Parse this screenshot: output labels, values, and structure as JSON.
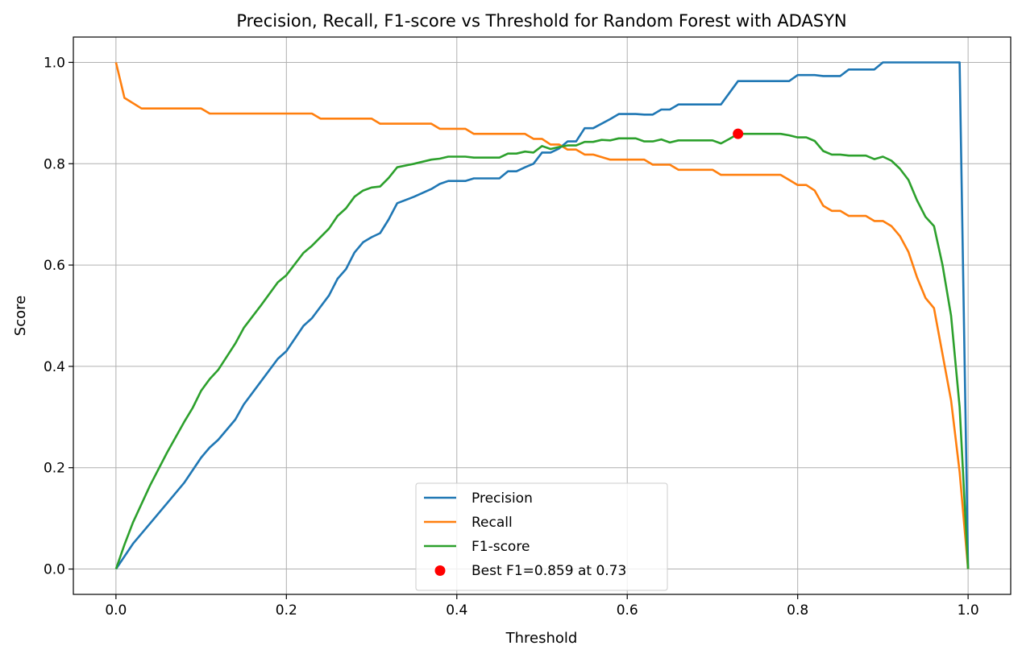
{
  "chart_data": {
    "type": "line",
    "title": "Precision, Recall, F1-score vs Threshold for Random Forest with ADASYN",
    "xlabel": "Threshold",
    "ylabel": "Score",
    "xlim": [
      -0.05,
      1.05
    ],
    "ylim": [
      -0.05,
      1.05
    ],
    "xticks": [
      0.0,
      0.2,
      0.4,
      0.6,
      0.8,
      1.0
    ],
    "xtick_labels": [
      "0.0",
      "0.2",
      "0.4",
      "0.6",
      "0.8",
      "1.0"
    ],
    "yticks": [
      0.0,
      0.2,
      0.4,
      0.6,
      0.8,
      1.0
    ],
    "ytick_labels": [
      "0.0",
      "0.2",
      "0.4",
      "0.6",
      "0.8",
      "1.0"
    ],
    "grid": true,
    "legend_position": "lower-center",
    "series": [
      {
        "name": "Precision",
        "color": "#1f77b4",
        "x": [
          0.0,
          0.02,
          0.04,
          0.06,
          0.08,
          0.09,
          0.1,
          0.11,
          0.12,
          0.14,
          0.15,
          0.17,
          0.19,
          0.2,
          0.22,
          0.23,
          0.25,
          0.26,
          0.27,
          0.28,
          0.29,
          0.3,
          0.31,
          0.32,
          0.33,
          0.35,
          0.37,
          0.38,
          0.39,
          0.4,
          0.41,
          0.42,
          0.43,
          0.45,
          0.46,
          0.47,
          0.48,
          0.49,
          0.5,
          0.51,
          0.52,
          0.53,
          0.54,
          0.55,
          0.56,
          0.58,
          0.59,
          0.6,
          0.61,
          0.62,
          0.63,
          0.64,
          0.65,
          0.66,
          0.67,
          0.7,
          0.71,
          0.72,
          0.73,
          0.75,
          0.77,
          0.78,
          0.79,
          0.8,
          0.82,
          0.83,
          0.85,
          0.86,
          0.88,
          0.89,
          0.9,
          0.92,
          0.95,
          0.97,
          0.99,
          1.0
        ],
        "y": [
          0.0,
          0.05,
          0.09,
          0.13,
          0.17,
          0.195,
          0.22,
          0.24,
          0.255,
          0.295,
          0.325,
          0.37,
          0.415,
          0.43,
          0.48,
          0.495,
          0.54,
          0.573,
          0.592,
          0.625,
          0.645,
          0.655,
          0.663,
          0.69,
          0.722,
          0.735,
          0.75,
          0.76,
          0.766,
          0.766,
          0.766,
          0.771,
          0.771,
          0.771,
          0.785,
          0.785,
          0.793,
          0.8,
          0.822,
          0.822,
          0.83,
          0.844,
          0.844,
          0.87,
          0.87,
          0.888,
          0.898,
          0.898,
          0.898,
          0.897,
          0.897,
          0.907,
          0.907,
          0.917,
          0.917,
          0.917,
          0.917,
          0.94,
          0.963,
          0.963,
          0.963,
          0.963,
          0.963,
          0.975,
          0.975,
          0.973,
          0.973,
          0.986,
          0.986,
          0.986,
          1.0,
          1.0,
          1.0,
          1.0,
          1.0,
          0.0
        ]
      },
      {
        "name": "Recall",
        "color": "#ff7f0e",
        "x": [
          0.0,
          0.01,
          0.03,
          0.05,
          0.1,
          0.11,
          0.2,
          0.23,
          0.24,
          0.3,
          0.31,
          0.37,
          0.38,
          0.41,
          0.42,
          0.48,
          0.49,
          0.5,
          0.51,
          0.52,
          0.53,
          0.54,
          0.55,
          0.56,
          0.58,
          0.59,
          0.62,
          0.63,
          0.64,
          0.65,
          0.66,
          0.69,
          0.7,
          0.71,
          0.78,
          0.79,
          0.8,
          0.81,
          0.82,
          0.83,
          0.84,
          0.85,
          0.86,
          0.88,
          0.89,
          0.9,
          0.91,
          0.92,
          0.93,
          0.94,
          0.95,
          0.96,
          0.97,
          0.98,
          0.99,
          1.0
        ],
        "y": [
          1.0,
          0.93,
          0.909,
          0.909,
          0.909,
          0.899,
          0.899,
          0.899,
          0.889,
          0.889,
          0.879,
          0.879,
          0.869,
          0.869,
          0.859,
          0.859,
          0.849,
          0.849,
          0.838,
          0.838,
          0.828,
          0.828,
          0.818,
          0.818,
          0.808,
          0.808,
          0.808,
          0.798,
          0.798,
          0.798,
          0.788,
          0.788,
          0.788,
          0.778,
          0.778,
          0.768,
          0.758,
          0.758,
          0.747,
          0.717,
          0.707,
          0.707,
          0.697,
          0.697,
          0.687,
          0.687,
          0.677,
          0.657,
          0.626,
          0.576,
          0.535,
          0.515,
          0.424,
          0.333,
          0.192,
          0.0
        ]
      },
      {
        "name": "F1-score",
        "color": "#2ca02c",
        "x": [
          0.0,
          0.01,
          0.02,
          0.04,
          0.06,
          0.08,
          0.09,
          0.1,
          0.11,
          0.12,
          0.14,
          0.15,
          0.17,
          0.19,
          0.2,
          0.22,
          0.23,
          0.25,
          0.26,
          0.27,
          0.28,
          0.29,
          0.3,
          0.31,
          0.32,
          0.33,
          0.35,
          0.37,
          0.38,
          0.39,
          0.4,
          0.41,
          0.42,
          0.43,
          0.45,
          0.46,
          0.47,
          0.48,
          0.49,
          0.5,
          0.51,
          0.52,
          0.53,
          0.54,
          0.55,
          0.56,
          0.57,
          0.58,
          0.59,
          0.61,
          0.62,
          0.63,
          0.64,
          0.65,
          0.66,
          0.67,
          0.7,
          0.71,
          0.72,
          0.73,
          0.78,
          0.79,
          0.8,
          0.81,
          0.82,
          0.83,
          0.84,
          0.85,
          0.86,
          0.88,
          0.89,
          0.9,
          0.91,
          0.92,
          0.93,
          0.94,
          0.95,
          0.96,
          0.97,
          0.98,
          0.99,
          1.0
        ],
        "y": [
          0.0,
          0.048,
          0.092,
          0.165,
          0.23,
          0.29,
          0.318,
          0.352,
          0.375,
          0.393,
          0.445,
          0.476,
          0.52,
          0.566,
          0.58,
          0.624,
          0.638,
          0.672,
          0.697,
          0.712,
          0.735,
          0.747,
          0.753,
          0.755,
          0.772,
          0.793,
          0.8,
          0.808,
          0.81,
          0.814,
          0.814,
          0.814,
          0.812,
          0.812,
          0.812,
          0.82,
          0.82,
          0.824,
          0.822,
          0.835,
          0.829,
          0.833,
          0.836,
          0.836,
          0.843,
          0.843,
          0.847,
          0.846,
          0.85,
          0.85,
          0.844,
          0.844,
          0.848,
          0.842,
          0.846,
          0.846,
          0.846,
          0.84,
          0.849,
          0.859,
          0.859,
          0.856,
          0.852,
          0.852,
          0.845,
          0.825,
          0.818,
          0.818,
          0.816,
          0.816,
          0.809,
          0.814,
          0.806,
          0.79,
          0.768,
          0.728,
          0.695,
          0.677,
          0.6,
          0.5,
          0.32,
          0.0
        ]
      }
    ],
    "marker": {
      "name": "Best F1=0.859 at 0.73",
      "color": "#ff0000",
      "x": 0.73,
      "y": 0.859
    }
  }
}
